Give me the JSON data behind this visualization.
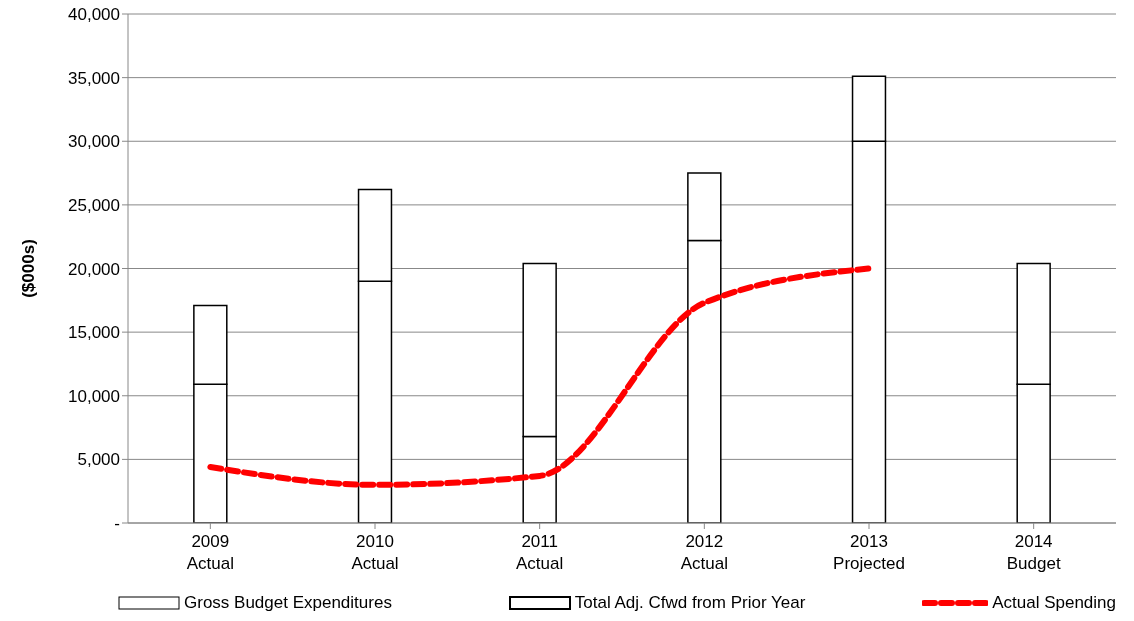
{
  "chart_data": {
    "type": "bar",
    "stacked": true,
    "ylabel": "($000s)",
    "categories": [
      "2009\nActual",
      "2010\nActual",
      "2011\nActual",
      "2012\nActual",
      "2013\nProjected",
      "2014\nBudget"
    ],
    "series": [
      {
        "name": "Gross Budget Expenditures",
        "color": "#ffffff",
        "values": [
          10900,
          19000,
          6800,
          22200,
          30000,
          10900
        ]
      },
      {
        "name": "Total Adj. Cfwd from Prior Year",
        "color": "#ffffff",
        "values": [
          6200,
          7200,
          13600,
          5300,
          5100,
          9500
        ]
      },
      {
        "name": "Actual Spending",
        "type": "line",
        "color": "#ff0000",
        "line_style": "dashed",
        "marker": "none",
        "values": [
          4400,
          3000,
          3700,
          17300,
          20000,
          null
        ]
      }
    ],
    "ylim": [
      0,
      40000
    ],
    "yticks": [
      {
        "value": 0,
        "label": "-"
      },
      {
        "value": 5000,
        "label": "5,000"
      },
      {
        "value": 10000,
        "label": "10,000"
      },
      {
        "value": 15000,
        "label": "15,000"
      },
      {
        "value": 20000,
        "label": "20,000"
      },
      {
        "value": 25000,
        "label": "25,000"
      },
      {
        "value": 30000,
        "label": "30,000"
      },
      {
        "value": 35000,
        "label": "35,000"
      },
      {
        "value": 40000,
        "label": "40,000"
      }
    ],
    "grid": "y",
    "legend": "bottom"
  }
}
